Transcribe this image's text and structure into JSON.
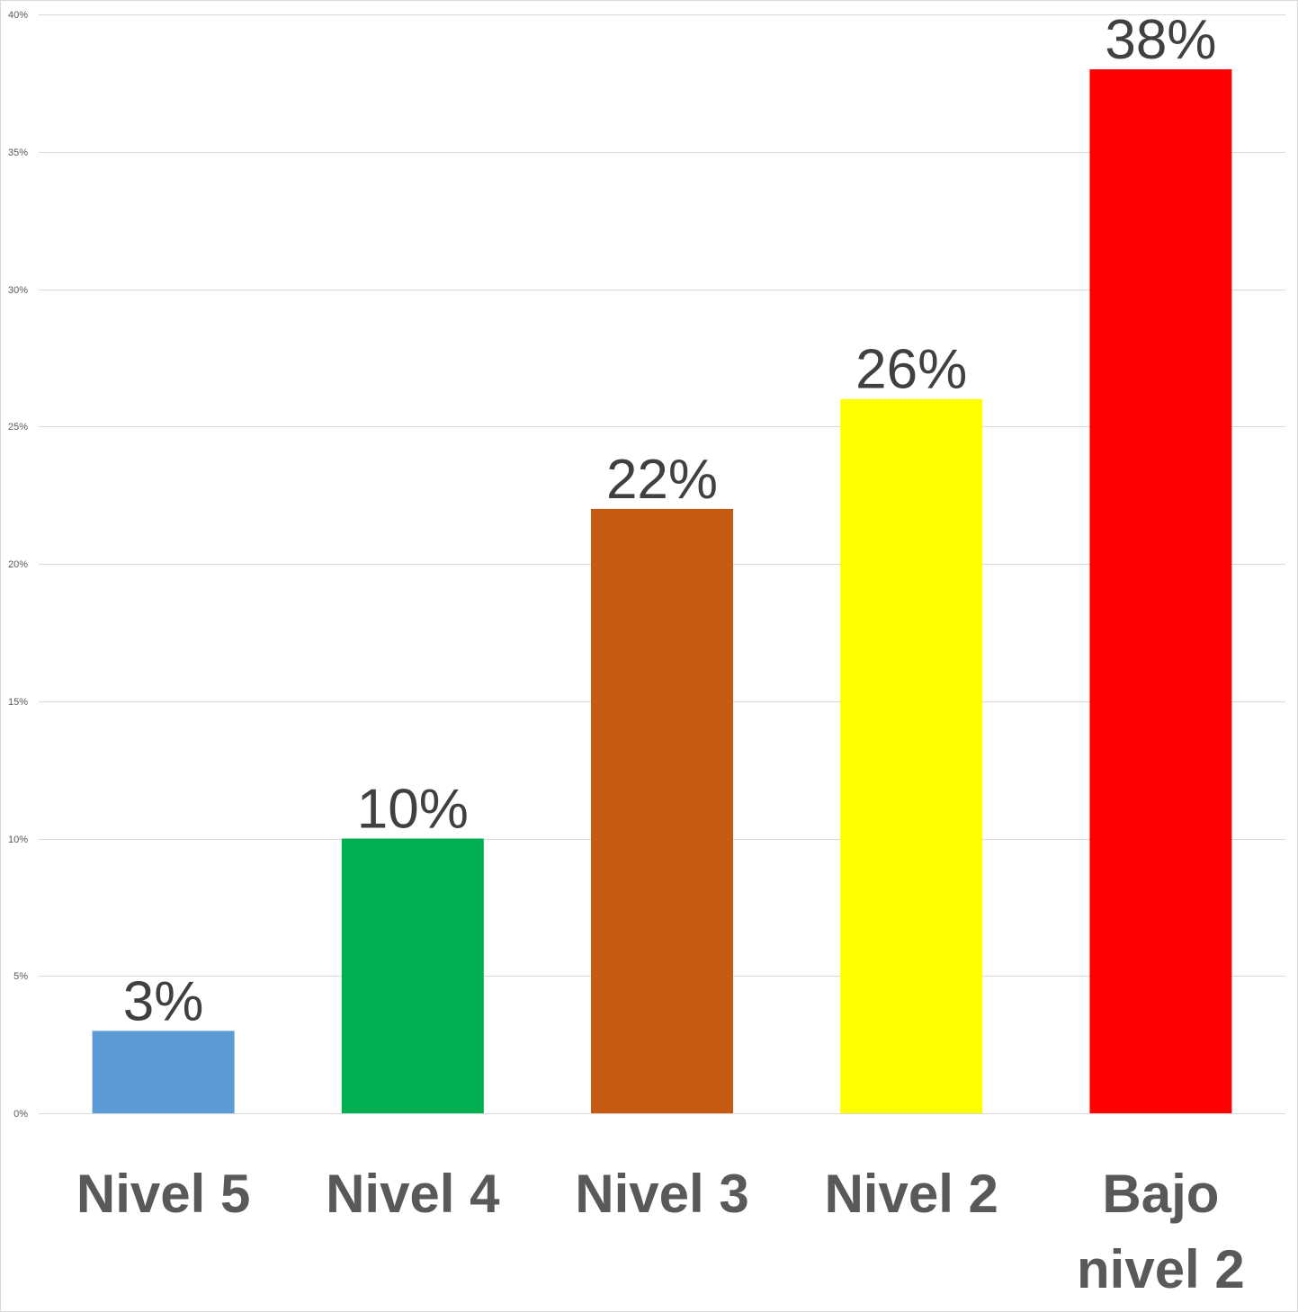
{
  "chart_data": {
    "type": "bar",
    "title": "",
    "xlabel": "",
    "ylabel": "",
    "categories": [
      [
        "Nivel 5"
      ],
      [
        "Nivel 4"
      ],
      [
        "Nivel 3"
      ],
      [
        "Nivel 2"
      ],
      [
        "Bajo",
        "nivel 2"
      ]
    ],
    "values": [
      3,
      10,
      22,
      26,
      38
    ],
    "data_labels": [
      "3%",
      "10%",
      "22%",
      "26%",
      "38%"
    ],
    "colors": [
      "#5b9bd5",
      "#00b050",
      "#c55a11",
      "#ffff00",
      "#ff0000"
    ],
    "ylim": [
      0,
      40
    ],
    "yticks": [
      0,
      5,
      10,
      15,
      20,
      25,
      30,
      35,
      40
    ],
    "ytick_labels": [
      "0%",
      "5%",
      "10%",
      "15%",
      "20%",
      "25%",
      "30%",
      "35%",
      "40%"
    ],
    "grid": true,
    "legend": "none"
  }
}
